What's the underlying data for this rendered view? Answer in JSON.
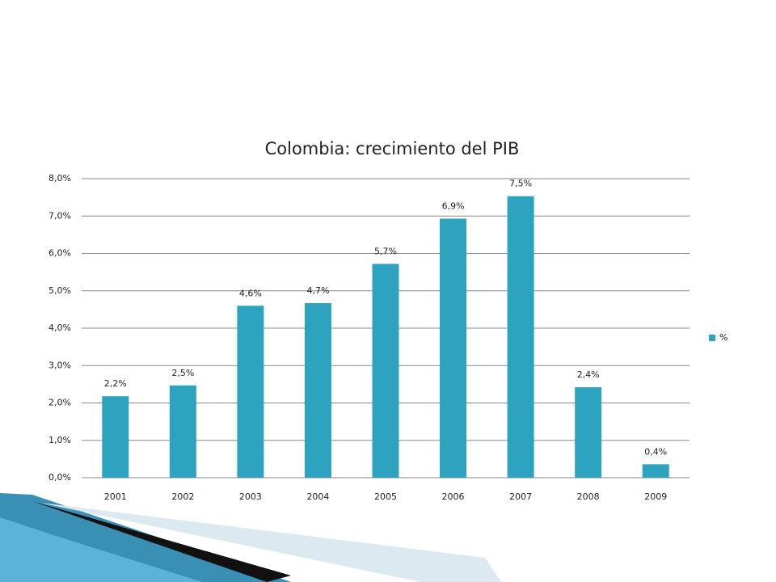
{
  "chart_data": {
    "type": "bar",
    "title": "Colombia: crecimiento del PIB",
    "categories": [
      "2001",
      "2002",
      "2003",
      "2004",
      "2005",
      "2006",
      "2007",
      "2008",
      "2009"
    ],
    "series": [
      {
        "name": "%",
        "color": "#2ea3bf",
        "values": [
          2.18,
          2.47,
          4.6,
          4.67,
          5.72,
          6.93,
          7.53,
          2.42,
          0.36
        ],
        "value_labels": [
          "2,2%",
          "2,5%",
          "4,6%",
          "4,7%",
          "5,7%",
          "6,9%",
          "7,5%",
          "2,4%",
          "0,4%"
        ]
      }
    ],
    "ylim": [
      0,
      8
    ],
    "yticks": [
      {
        "value": 0,
        "label": "0,0%"
      },
      {
        "value": 1,
        "label": "1,0%"
      },
      {
        "value": 2,
        "label": "2,0%"
      },
      {
        "value": 3,
        "label": "3,0%"
      },
      {
        "value": 4,
        "label": "4,0%"
      },
      {
        "value": 5,
        "label": "5,0%"
      },
      {
        "value": 6,
        "label": "6,0%"
      },
      {
        "value": 7,
        "label": "7,0%"
      },
      {
        "value": 8,
        "label": "8,0%"
      }
    ],
    "grid": true,
    "legend": "right"
  }
}
